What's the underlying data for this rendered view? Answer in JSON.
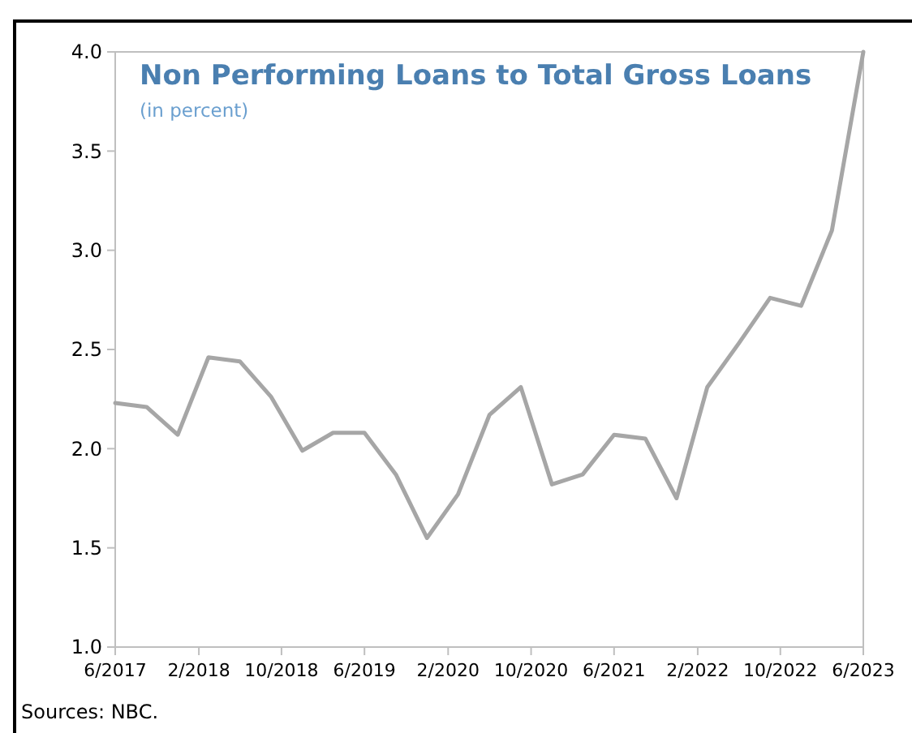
{
  "chart_data": {
    "type": "line",
    "title": "Non Performing Loans to Total Gross Loans",
    "subtitle": "(in percent)",
    "annotations": [
      "Sources: NBC."
    ],
    "x": [
      "2017-06",
      "2017-09",
      "2017-12",
      "2018-03",
      "2018-06",
      "2018-09",
      "2018-12",
      "2019-03",
      "2019-06",
      "2019-09",
      "2019-12",
      "2020-03",
      "2020-06",
      "2020-09",
      "2020-12",
      "2021-03",
      "2021-06",
      "2021-09",
      "2021-12",
      "2022-03",
      "2022-06",
      "2022-09",
      "2022-12",
      "2023-03",
      "2023-06"
    ],
    "series": [
      {
        "color": "#a6a6a6",
        "values": [
          2.23,
          2.21,
          2.07,
          2.46,
          2.44,
          2.26,
          1.99,
          2.08,
          2.08,
          1.87,
          1.55,
          1.77,
          2.17,
          2.31,
          1.82,
          1.87,
          2.07,
          2.05,
          1.75,
          2.31,
          2.53,
          2.76,
          2.72,
          3.1,
          4.0
        ]
      }
    ],
    "xlim": [
      "2017-06",
      "2023-06"
    ],
    "xticks": [
      {
        "value": "2017-06",
        "label": "6/2017"
      },
      {
        "value": "2018-02",
        "label": "2/2018"
      },
      {
        "value": "2018-10",
        "label": "10/2018"
      },
      {
        "value": "2019-06",
        "label": "6/2019"
      },
      {
        "value": "2020-02",
        "label": "2/2020"
      },
      {
        "value": "2020-10",
        "label": "10/2020"
      },
      {
        "value": "2021-06",
        "label": "6/2021"
      },
      {
        "value": "2022-02",
        "label": "2/2022"
      },
      {
        "value": "2022-10",
        "label": "10/2022"
      },
      {
        "value": "2023-06",
        "label": "6/2023"
      }
    ],
    "ylim": [
      1.0,
      4.0
    ],
    "yticks": [
      {
        "value": 1.0,
        "label": "1.0"
      },
      {
        "value": 1.5,
        "label": "1.5"
      },
      {
        "value": 2.0,
        "label": "2.0"
      },
      {
        "value": 2.5,
        "label": "2.5"
      },
      {
        "value": 3.0,
        "label": "3.0"
      },
      {
        "value": 3.5,
        "label": "3.5"
      },
      {
        "value": 4.0,
        "label": "4.0"
      }
    ],
    "grid": false,
    "marker": "none",
    "line_style": "solid"
  }
}
